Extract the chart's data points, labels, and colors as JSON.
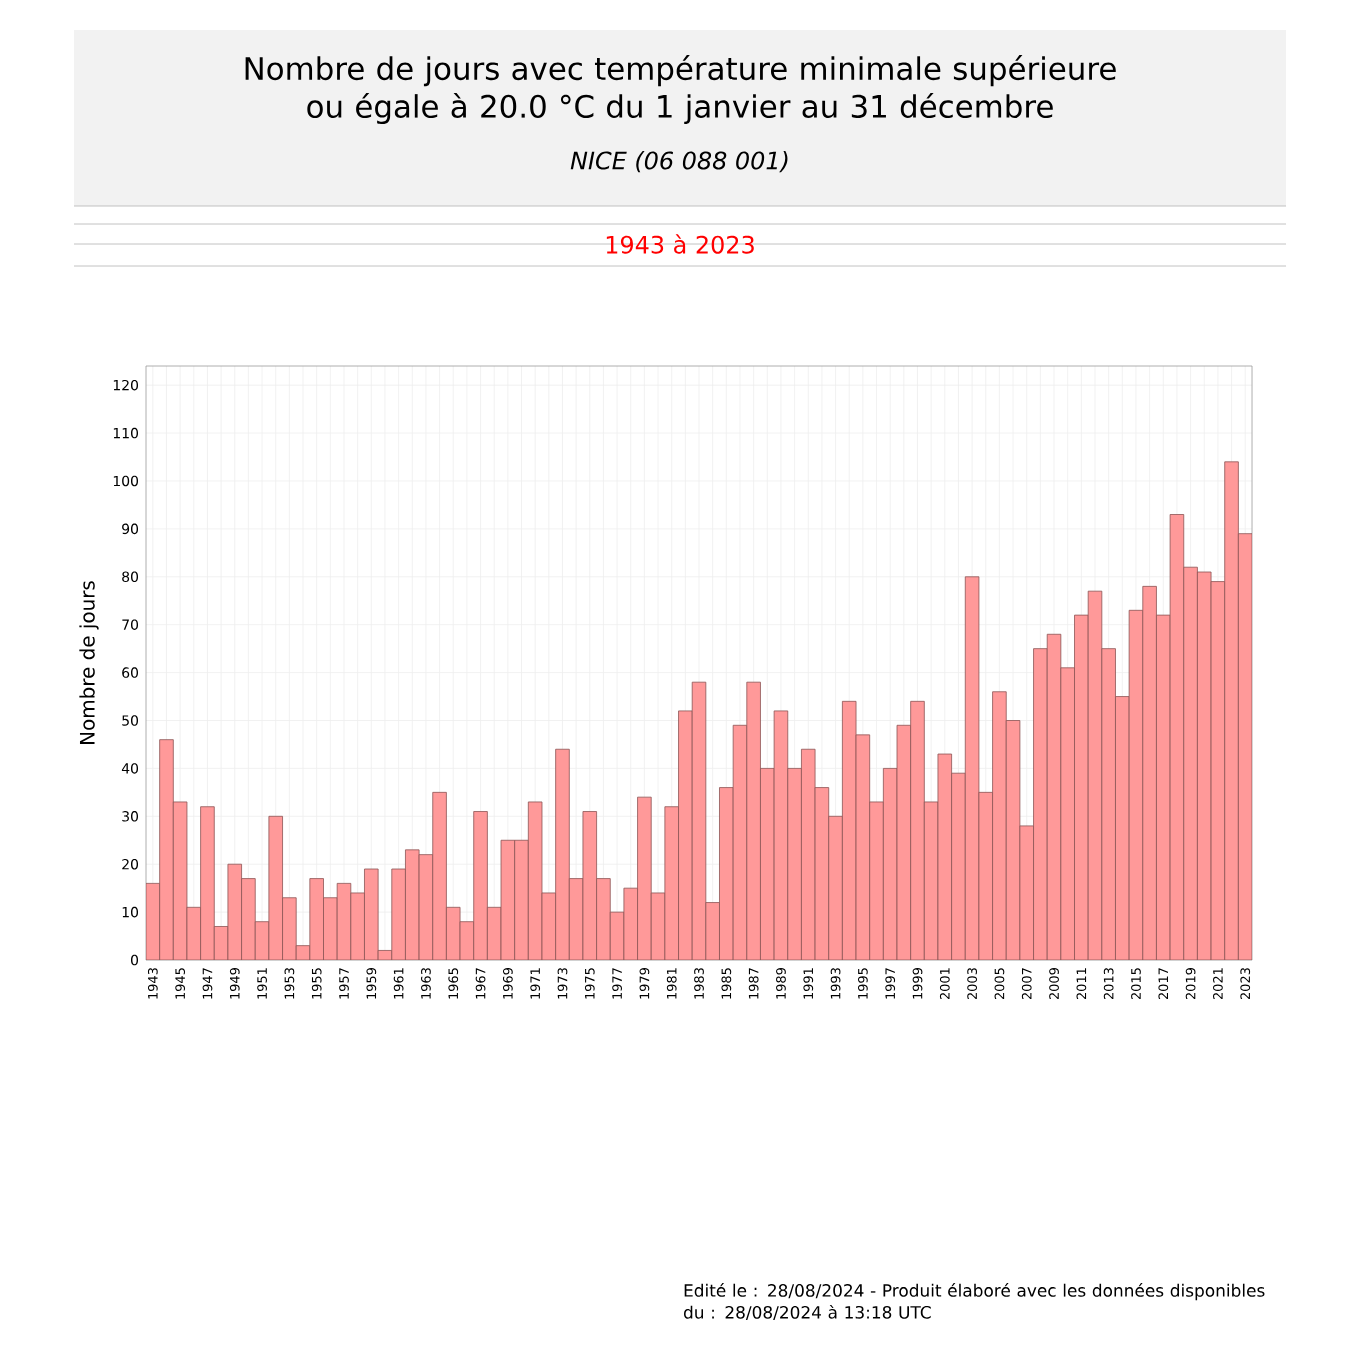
{
  "chart_data": {
    "type": "bar",
    "title": "Nombre de jours avec température minimale supérieure ou égale à 20.0 °C du 1 janvier au 31 décembre",
    "subtitle": "*NICE (06 088 001)*",
    "ylabel": "Nombre de jours",
    "annotations": [
      "1943 à 2023",
      "Edité le : 28/08/2024 - Produit élaboré avec les données disponibles du : 28/08/2024 à 13:18 UTC"
    ],
    "categories": [
      "1943",
      null,
      "1945",
      null,
      "1947",
      null,
      "1949",
      null,
      "1951",
      null,
      "1953",
      null,
      "1955",
      null,
      "1957",
      null,
      "1959",
      null,
      "1961",
      null,
      "1963",
      null,
      "1965",
      null,
      "1967",
      null,
      "1969",
      null,
      "1971",
      null,
      "1973",
      null,
      "1975",
      null,
      "1977",
      null,
      "1979",
      null,
      "1981",
      null,
      "1983",
      null,
      "1985",
      null,
      "1987",
      null,
      "1989",
      null,
      "1991",
      null,
      "1993",
      null,
      "1995",
      null,
      "1997",
      null,
      "1999",
      null,
      "2001",
      null,
      "2003",
      null,
      "2005",
      null,
      "2007",
      null,
      "2009",
      null,
      "2011",
      null,
      "2013",
      null,
      "2015",
      null,
      "2017",
      null,
      "2019",
      null,
      "2021",
      null,
      "2023"
    ],
    "values": [
      16,
      46,
      33,
      11,
      32,
      7,
      20,
      17,
      8,
      30,
      13,
      3,
      17,
      13,
      16,
      14,
      19,
      2,
      19,
      23,
      22,
      35,
      11,
      8,
      31,
      11,
      25,
      25,
      33,
      14,
      44,
      17,
      31,
      17,
      10,
      15,
      34,
      14,
      32,
      52,
      58,
      12,
      36,
      49,
      58,
      40,
      52,
      40,
      44,
      36,
      30,
      54,
      47,
      33,
      40,
      49,
      54,
      33,
      43,
      39,
      80,
      35,
      56,
      50,
      28,
      65,
      68,
      61,
      72,
      77,
      65,
      55,
      73,
      78,
      72,
      93,
      82,
      81,
      79,
      104,
      89
    ],
    "color": "#ff9999",
    "ylim": [
      0,
      124
    ],
    "yticks": [
      0,
      10,
      20,
      30,
      40,
      50,
      60,
      70,
      80,
      90,
      100,
      110,
      120
    ],
    "grid": true
  }
}
